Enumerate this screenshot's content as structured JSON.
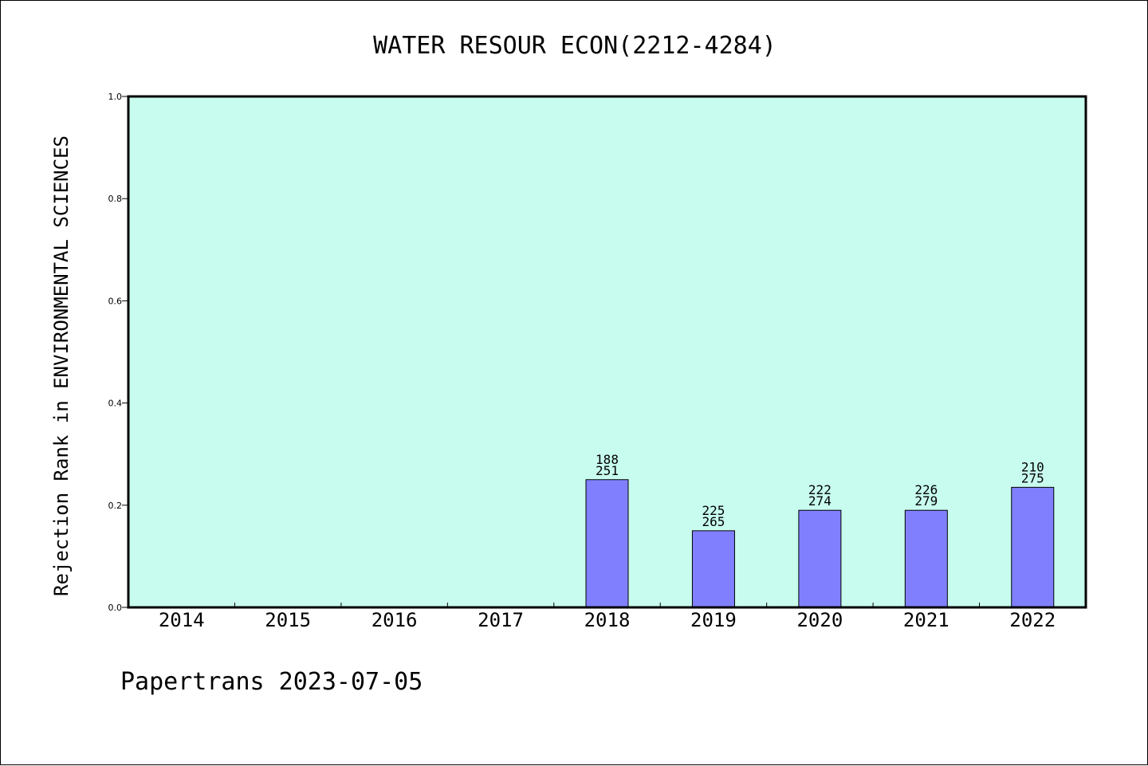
{
  "chart_data": {
    "type": "bar",
    "title": "WATER RESOUR ECON(2212-4284)",
    "ylabel": "Rejection Rank in ENVIRONMENTAL SCIENCES",
    "xlabel": "",
    "categories": [
      "2014",
      "2015",
      "2016",
      "2017",
      "2018",
      "2019",
      "2020",
      "2021",
      "2022"
    ],
    "values": [
      null,
      null,
      null,
      null,
      0.25,
      0.15,
      0.19,
      0.19,
      0.235
    ],
    "bar_labels": [
      null,
      null,
      null,
      null,
      [
        "188",
        "251"
      ],
      [
        "225",
        "265"
      ],
      [
        "222",
        "274"
      ],
      [
        "226",
        "279"
      ],
      [
        "210",
        "275"
      ]
    ],
    "ylim": [
      0,
      1.0
    ],
    "yticks": [
      "0.0",
      "0.2",
      "0.4",
      "0.6",
      "0.8",
      "1.0"
    ],
    "ytick_values": [
      0,
      0.2,
      0.4,
      0.6,
      0.8,
      1.0
    ],
    "grid": false,
    "legend": "none",
    "colors": {
      "plot_background": "#c8fcee",
      "bar_fill": "#8080ff",
      "bar_stroke": "#000000",
      "axis": "#000000"
    }
  },
  "footer": {
    "text": "Papertrans 2023-07-05"
  }
}
